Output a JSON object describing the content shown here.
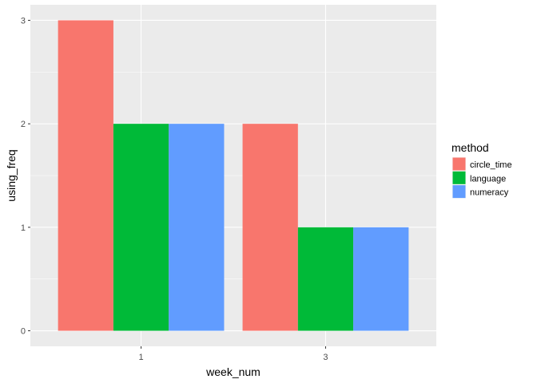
{
  "chart_data": {
    "type": "bar",
    "position": "dodge",
    "categories": [
      "1",
      "3"
    ],
    "series": [
      {
        "name": "circle_time",
        "color": "#F8766D",
        "values": [
          3,
          2
        ]
      },
      {
        "name": "language",
        "color": "#00BA38",
        "values": [
          2,
          1
        ]
      },
      {
        "name": "numeracy",
        "color": "#619CFF",
        "values": [
          2,
          1
        ]
      }
    ],
    "xlabel": "week_num",
    "ylabel": "using_freq",
    "ylim": [
      0,
      3
    ],
    "yticks": [
      0,
      1,
      2,
      3
    ],
    "grid": true,
    "legend": {
      "title": "method",
      "placement": "right"
    },
    "panel_background": "#EBEBEB"
  }
}
